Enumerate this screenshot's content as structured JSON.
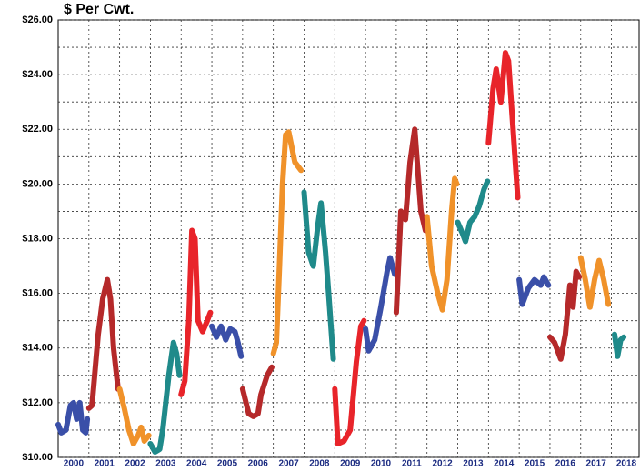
{
  "chart_data": {
    "type": "line",
    "title": "$ Per Cwt.",
    "xlim": [
      2000,
      2018.9
    ],
    "xticks": [
      2000,
      2001,
      2002,
      2003,
      2004,
      2005,
      2006,
      2007,
      2008,
      2009,
      2010,
      2011,
      2012,
      2013,
      2014,
      2015,
      2016,
      2017,
      2018
    ],
    "ylim": [
      10,
      26
    ],
    "yticks": [
      {
        "value": 10,
        "label": "$10.00"
      },
      {
        "value": 12,
        "label": "$12.00"
      },
      {
        "value": 14,
        "label": "$14.00"
      },
      {
        "value": 16,
        "label": "$16.00"
      },
      {
        "value": 18,
        "label": "$18.00"
      },
      {
        "value": 20,
        "label": "$20.00"
      },
      {
        "value": 22,
        "label": "$22.00"
      },
      {
        "value": 24,
        "label": "$24.00"
      },
      {
        "value": 26,
        "label": "$26.00"
      }
    ],
    "minor_yticks": [
      11,
      13,
      15,
      17,
      19,
      21,
      23,
      25
    ],
    "grid": true,
    "series": [
      {
        "color": "#3a4fa8",
        "x": [
          2000.0,
          2000.1,
          2000.25,
          2000.4,
          2000.5,
          2000.6,
          2000.7,
          2000.8,
          2000.9,
          2000.95
        ],
        "values": [
          11.2,
          10.9,
          11.0,
          11.9,
          12.0,
          11.4,
          12.0,
          11.0,
          10.9,
          11.4
        ]
      },
      {
        "color": "#b5292a",
        "x": [
          2001.0,
          2001.1,
          2001.3,
          2001.45,
          2001.6,
          2001.7,
          2001.8,
          2001.95
        ],
        "values": [
          11.8,
          11.9,
          14.5,
          15.8,
          16.5,
          15.8,
          14.0,
          12.5
        ]
      },
      {
        "color": "#f0922a",
        "x": [
          2002.0,
          2002.15,
          2002.3,
          2002.45,
          2002.6,
          2002.7,
          2002.8,
          2002.95
        ],
        "values": [
          12.5,
          11.8,
          11.0,
          10.5,
          10.8,
          11.1,
          10.6,
          10.8
        ]
      },
      {
        "color": "#1f8a8a",
        "x": [
          2003.0,
          2003.15,
          2003.3,
          2003.4,
          2003.6,
          2003.75,
          2003.85,
          2003.95
        ],
        "values": [
          10.5,
          10.2,
          10.3,
          11.0,
          13.0,
          14.2,
          13.8,
          13.0
        ]
      },
      {
        "color": "#e8242a",
        "x": [
          2004.0,
          2004.12,
          2004.25,
          2004.35,
          2004.45,
          2004.55,
          2004.7,
          2004.85,
          2004.95
        ],
        "values": [
          12.3,
          12.8,
          15.0,
          18.3,
          18.0,
          15.0,
          14.6,
          15.0,
          15.3
        ]
      },
      {
        "color": "#3a4fa8",
        "x": [
          2005.0,
          2005.15,
          2005.3,
          2005.45,
          2005.6,
          2005.75,
          2005.85,
          2005.95
        ],
        "values": [
          14.8,
          14.4,
          14.8,
          14.3,
          14.7,
          14.6,
          14.2,
          13.7
        ]
      },
      {
        "color": "#b5292a",
        "x": [
          2006.0,
          2006.2,
          2006.35,
          2006.5,
          2006.6,
          2006.8,
          2006.95
        ],
        "values": [
          12.5,
          11.6,
          11.5,
          11.6,
          12.3,
          13.0,
          13.3
        ]
      },
      {
        "color": "#f0922a",
        "x": [
          2007.0,
          2007.1,
          2007.2,
          2007.3,
          2007.4,
          2007.5,
          2007.7,
          2007.9
        ],
        "values": [
          13.8,
          14.2,
          17.0,
          20.0,
          21.8,
          21.9,
          20.8,
          20.5
        ]
      },
      {
        "color": "#1f8a8a",
        "x": [
          2008.0,
          2008.15,
          2008.3,
          2008.45,
          2008.55,
          2008.7,
          2008.8,
          2008.95
        ],
        "values": [
          19.7,
          17.5,
          17.0,
          18.5,
          19.3,
          17.5,
          16.0,
          13.6
        ]
      },
      {
        "color": "#e8242a",
        "x": [
          2009.0,
          2009.1,
          2009.3,
          2009.5,
          2009.7,
          2009.85,
          2009.95
        ],
        "values": [
          12.5,
          10.5,
          10.6,
          11.0,
          13.5,
          14.8,
          15.0
        ]
      },
      {
        "color": "#3a4fa8",
        "x": [
          2010.0,
          2010.1,
          2010.3,
          2010.5,
          2010.7,
          2010.8,
          2010.95
        ],
        "values": [
          14.7,
          13.9,
          14.3,
          15.5,
          16.8,
          17.3,
          16.7
        ]
      },
      {
        "color": "#b5292a",
        "x": [
          2011.0,
          2011.15,
          2011.3,
          2011.45,
          2011.6,
          2011.7,
          2011.8,
          2011.95
        ],
        "values": [
          15.3,
          19.0,
          18.7,
          20.8,
          22.0,
          20.5,
          19.0,
          18.3
        ]
      },
      {
        "color": "#f0922a",
        "x": [
          2012.0,
          2012.15,
          2012.35,
          2012.5,
          2012.65,
          2012.8,
          2012.9,
          2012.97
        ],
        "values": [
          18.8,
          17.0,
          16.0,
          15.4,
          16.5,
          19.0,
          20.2,
          20.0
        ]
      },
      {
        "color": "#1f8a8a",
        "x": [
          2013.0,
          2013.15,
          2013.25,
          2013.4,
          2013.55,
          2013.7,
          2013.85,
          2013.97
        ],
        "values": [
          18.6,
          18.2,
          17.9,
          18.6,
          18.8,
          19.2,
          19.8,
          20.1
        ]
      },
      {
        "color": "#e8242a",
        "x": [
          2014.0,
          2014.15,
          2014.25,
          2014.4,
          2014.55,
          2014.65,
          2014.8,
          2014.95
        ],
        "values": [
          21.5,
          23.5,
          24.2,
          23.0,
          24.8,
          24.5,
          22.0,
          19.5
        ]
      },
      {
        "color": "#3a4fa8",
        "x": [
          2015.0,
          2015.1,
          2015.3,
          2015.5,
          2015.7,
          2015.8,
          2015.95
        ],
        "values": [
          16.5,
          15.6,
          16.2,
          16.5,
          16.3,
          16.6,
          16.3
        ]
      },
      {
        "color": "#b5292a",
        "x": [
          2016.0,
          2016.15,
          2016.35,
          2016.5,
          2016.65,
          2016.75,
          2016.85,
          2016.95
        ],
        "values": [
          14.4,
          14.2,
          13.6,
          14.5,
          16.3,
          15.5,
          16.8,
          16.6
        ]
      },
      {
        "color": "#f0922a",
        "x": [
          2017.0,
          2017.15,
          2017.3,
          2017.45,
          2017.6,
          2017.75,
          2017.9
        ],
        "values": [
          17.3,
          16.5,
          15.5,
          16.5,
          17.2,
          16.5,
          15.6
        ]
      },
      {
        "color": "#1f8a8a",
        "x": [
          2018.1,
          2018.2,
          2018.3,
          2018.4
        ],
        "values": [
          14.5,
          13.7,
          14.3,
          14.4
        ]
      }
    ]
  }
}
